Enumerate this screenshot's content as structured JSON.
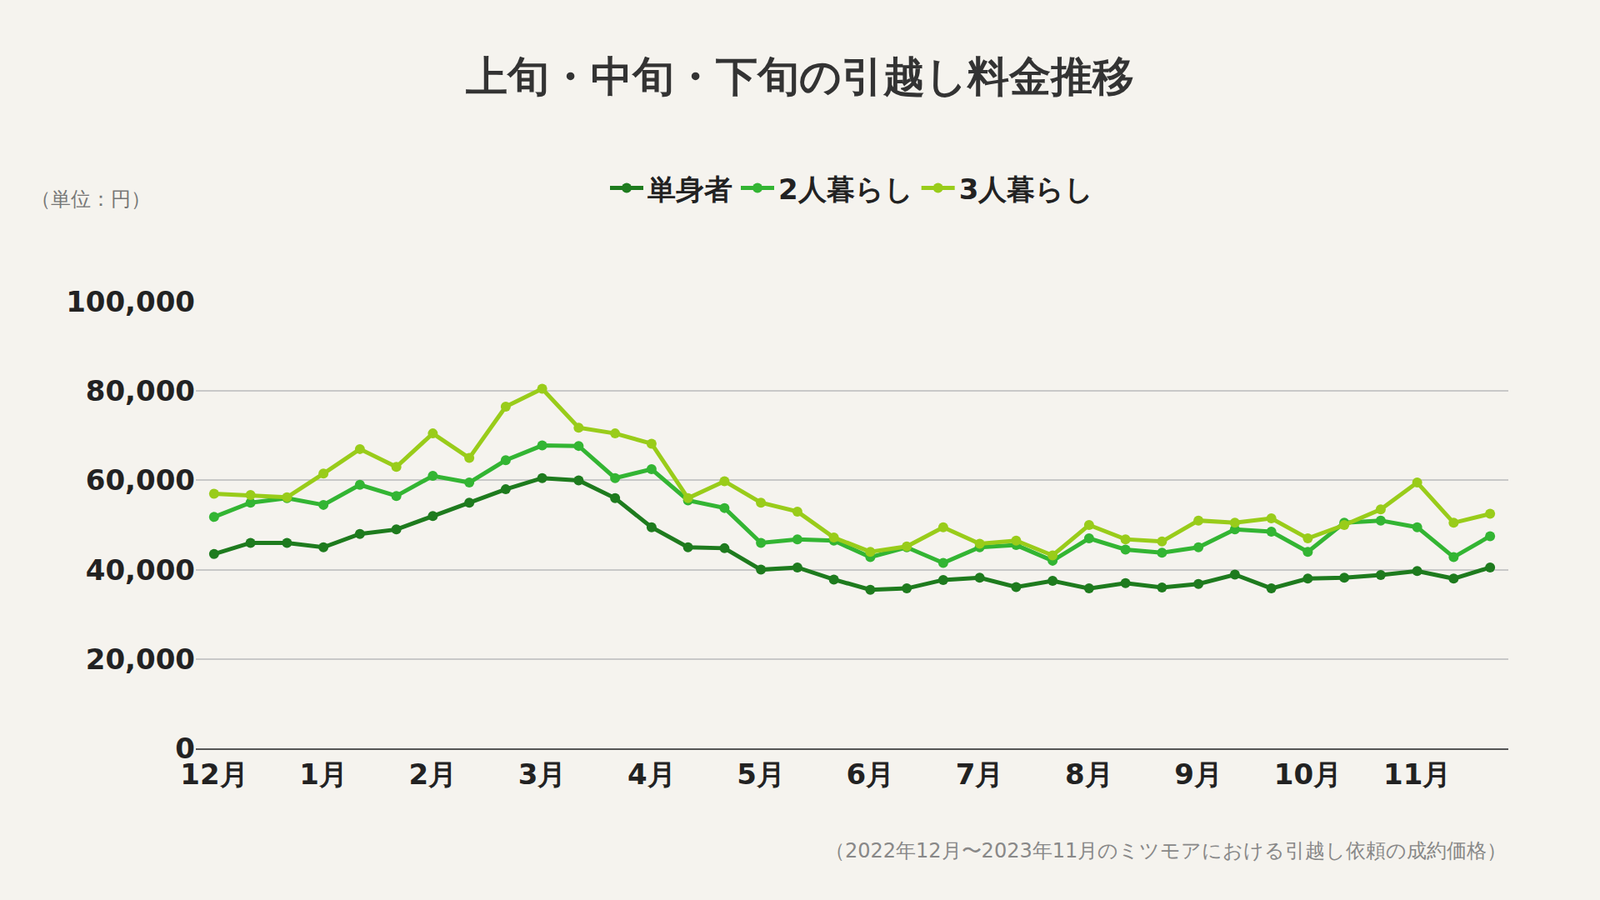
{
  "chart_data": {
    "type": "line",
    "title": "上旬・中旬・下旬の引越し料金推移",
    "annotations": [
      "（単位：円）",
      "（2022年12月〜2023年11月のミツモアにおける引越し依頼の成約価格）"
    ],
    "categories": [
      "12月",
      null,
      null,
      "1月",
      null,
      null,
      "2月",
      null,
      null,
      "3月",
      null,
      null,
      "4月",
      null,
      null,
      "5月",
      null,
      null,
      "6月",
      null,
      null,
      "7月",
      null,
      null,
      "8月",
      null,
      null,
      "9月",
      null,
      null,
      "10月",
      null,
      null,
      "11月",
      null,
      null
    ],
    "series": [
      {
        "name": "単身者",
        "color": "#1e7b1e",
        "values": [
          43500,
          46000,
          46000,
          45000,
          48000,
          49000,
          52000,
          55000,
          58000,
          60500,
          60000,
          56000,
          49500,
          45000,
          44800,
          40000,
          40500,
          37800,
          35500,
          35800,
          37700,
          38200,
          36100,
          37500,
          35800,
          37000,
          36000,
          36800,
          38900,
          35800,
          38000,
          38200,
          38800,
          39700,
          38000,
          40500
        ]
      },
      {
        "name": "2人暮らし",
        "color": "#33b533",
        "values": [
          51800,
          55000,
          56000,
          54500,
          59000,
          56500,
          61000,
          59500,
          64500,
          67800,
          67700,
          60500,
          62500,
          55500,
          53800,
          46000,
          46800,
          46500,
          42800,
          45000,
          41500,
          45000,
          45500,
          42000,
          47000,
          44500,
          43800,
          45000,
          49000,
          48500,
          44000,
          50500,
          51000,
          49500,
          42800,
          47500
        ]
      },
      {
        "name": "3人暮らし",
        "color": "#99cc1a",
        "values": [
          57000,
          56700,
          56200,
          61500,
          67000,
          63000,
          70500,
          65000,
          76500,
          80500,
          71800,
          70500,
          68200,
          56000,
          59800,
          55000,
          53000,
          47200,
          44000,
          45200,
          49500,
          45800,
          46500,
          43200,
          50000,
          46800,
          46300,
          51000,
          50500,
          51500,
          47000,
          50000,
          53500,
          59500,
          50500,
          52500
        ]
      }
    ],
    "ylim": [
      0,
      100000
    ],
    "yticks": [
      0,
      {
        "value": 20000,
        "label": "20,000"
      },
      {
        "value": 40000,
        "label": "40,000"
      },
      {
        "value": 60000,
        "label": "60,000"
      },
      {
        "value": 80000,
        "label": "80,000"
      },
      {
        "value": 100000,
        "label": "100,000"
      }
    ],
    "grid": true,
    "legend": "top",
    "marker": "circle",
    "line_style": "solid"
  }
}
